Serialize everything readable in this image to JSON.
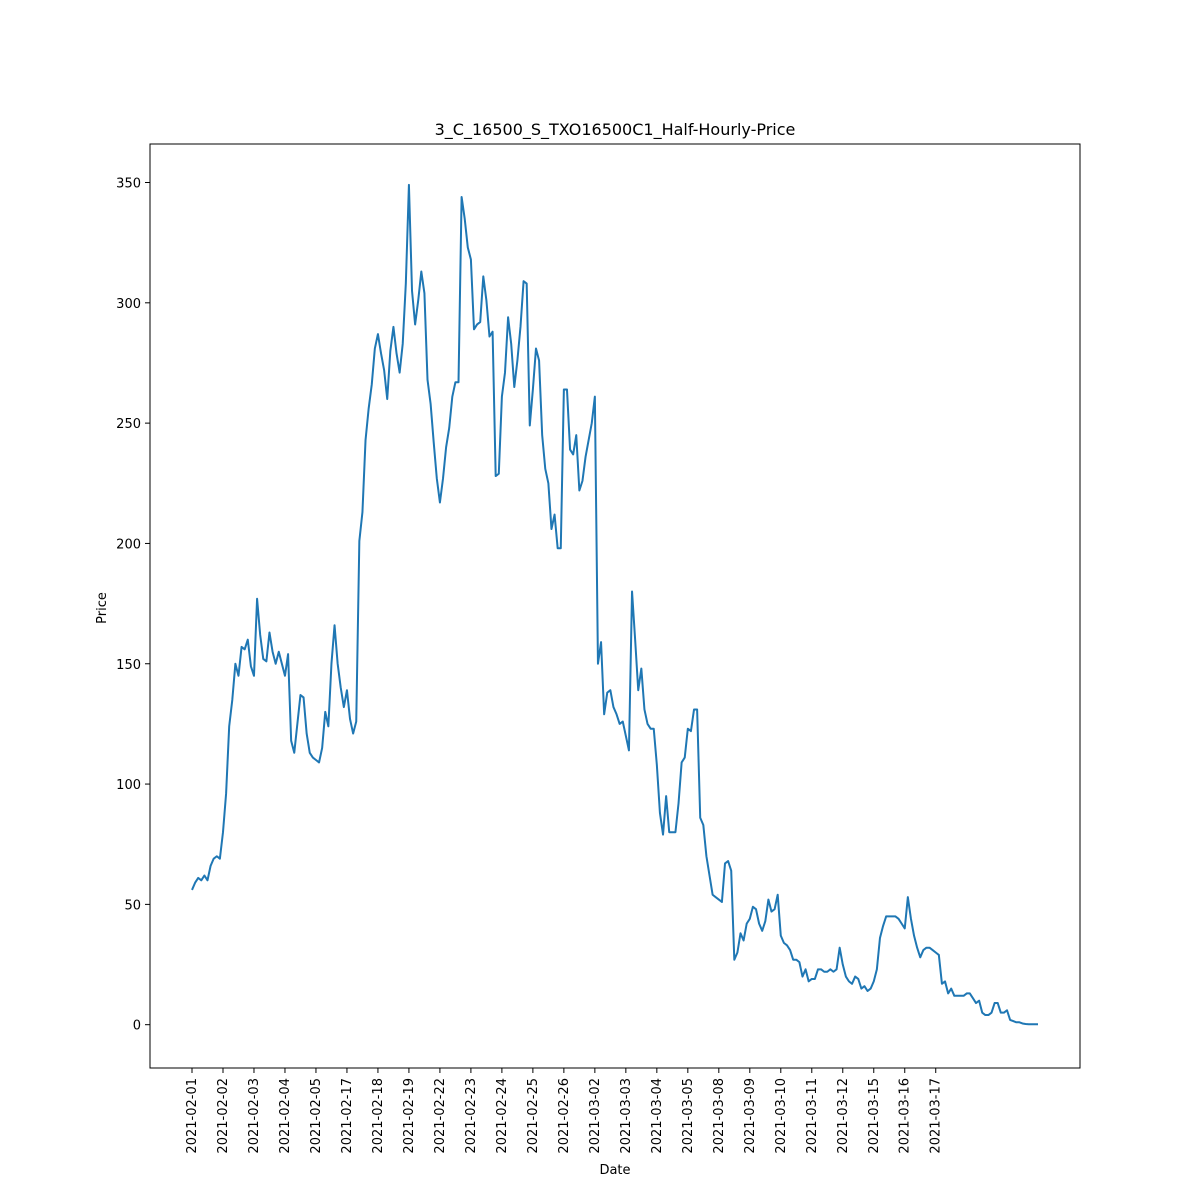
{
  "chart_data": {
    "type": "line",
    "title": "3_C_16500_S_TXO16500C1_Half-Hourly-Price",
    "xlabel": "Date",
    "ylabel": "Price",
    "ylim": [
      -18,
      366
    ],
    "yticks": [
      0,
      50,
      100,
      150,
      200,
      250,
      300,
      350
    ],
    "grid": false,
    "line_color": "#1f77b4",
    "x_ticks": [
      {
        "label": "2021-02-01",
        "index": 0
      },
      {
        "label": "2021-02-02",
        "index": 10
      },
      {
        "label": "2021-02-03",
        "index": 20
      },
      {
        "label": "2021-02-04",
        "index": 30
      },
      {
        "label": "2021-02-05",
        "index": 40
      },
      {
        "label": "2021-02-17",
        "index": 50
      },
      {
        "label": "2021-02-18",
        "index": 60
      },
      {
        "label": "2021-02-19",
        "index": 70
      },
      {
        "label": "2021-02-22",
        "index": 80
      },
      {
        "label": "2021-02-23",
        "index": 90
      },
      {
        "label": "2021-02-24",
        "index": 100
      },
      {
        "label": "2021-02-25",
        "index": 110
      },
      {
        "label": "2021-02-26",
        "index": 120
      },
      {
        "label": "2021-03-02",
        "index": 130
      },
      {
        "label": "2021-03-03",
        "index": 140
      },
      {
        "label": "2021-03-04",
        "index": 150
      },
      {
        "label": "2021-03-05",
        "index": 160
      },
      {
        "label": "2021-03-08",
        "index": 170
      },
      {
        "label": "2021-03-09",
        "index": 180
      },
      {
        "label": "2021-03-10",
        "index": 190
      },
      {
        "label": "2021-03-11",
        "index": 200
      },
      {
        "label": "2021-03-12",
        "index": 210
      },
      {
        "label": "2021-03-15",
        "index": 220
      },
      {
        "label": "2021-03-16",
        "index": 230
      },
      {
        "label": "2021-03-17",
        "index": 240
      }
    ],
    "series": [
      {
        "values": [
          56,
          59,
          61,
          60,
          62,
          60,
          66,
          69,
          70,
          69,
          80,
          96,
          124,
          135,
          150,
          145,
          157,
          156,
          160,
          149,
          145,
          177,
          162,
          152,
          151,
          163,
          155,
          150,
          155,
          150,
          145,
          154,
          118,
          113,
          125,
          137,
          136,
          121,
          113,
          111,
          110,
          109,
          115,
          130,
          124,
          150,
          166,
          150,
          140,
          132,
          139,
          127,
          121,
          126,
          201,
          213,
          243,
          256,
          266,
          281,
          287,
          279,
          272,
          260,
          280,
          290,
          279,
          271,
          283,
          308,
          349,
          305,
          291,
          301,
          313,
          304,
          268,
          258,
          242,
          227,
          217,
          227,
          240,
          248,
          261,
          267,
          267,
          344,
          335,
          323,
          318,
          289,
          291,
          292,
          311,
          301,
          286,
          288,
          228,
          229,
          261,
          271,
          294,
          283,
          265,
          276,
          290,
          309,
          308,
          249,
          264,
          281,
          276,
          245,
          231,
          225,
          206,
          212,
          198,
          198,
          264,
          264,
          239,
          237,
          245,
          222,
          226,
          236,
          243,
          250,
          261,
          150,
          159,
          129,
          138,
          139,
          132,
          129,
          125,
          126,
          120,
          114,
          180,
          160,
          139,
          148,
          131,
          125,
          123,
          123,
          108,
          88,
          79,
          95,
          80,
          80,
          80,
          92,
          109,
          111,
          123,
          122,
          131,
          131,
          86,
          83,
          70,
          62,
          54,
          53,
          52,
          51,
          67,
          68,
          64,
          27,
          30,
          38,
          35,
          42,
          44,
          49,
          48,
          42,
          39,
          43,
          52,
          47,
          48,
          54,
          37,
          34,
          33,
          31,
          27,
          27,
          26,
          20,
          23,
          18,
          19,
          19,
          23,
          23,
          22,
          22,
          23,
          22,
          23,
          32,
          25,
          20,
          18,
          17,
          20,
          19,
          15,
          16,
          14,
          15,
          18,
          23,
          36,
          41,
          45,
          45,
          45,
          45,
          44,
          42,
          40,
          53,
          44,
          37,
          32,
          28,
          31,
          32,
          32,
          31,
          30,
          29,
          17,
          18,
          13,
          15,
          12,
          12,
          12,
          12,
          13,
          13,
          11,
          9,
          10,
          5,
          4,
          4,
          5,
          9,
          9,
          5,
          5,
          6,
          2,
          1.5,
          1,
          1,
          0.5,
          0.3,
          0.2,
          0.2,
          0.2,
          0.2
        ]
      }
    ]
  }
}
